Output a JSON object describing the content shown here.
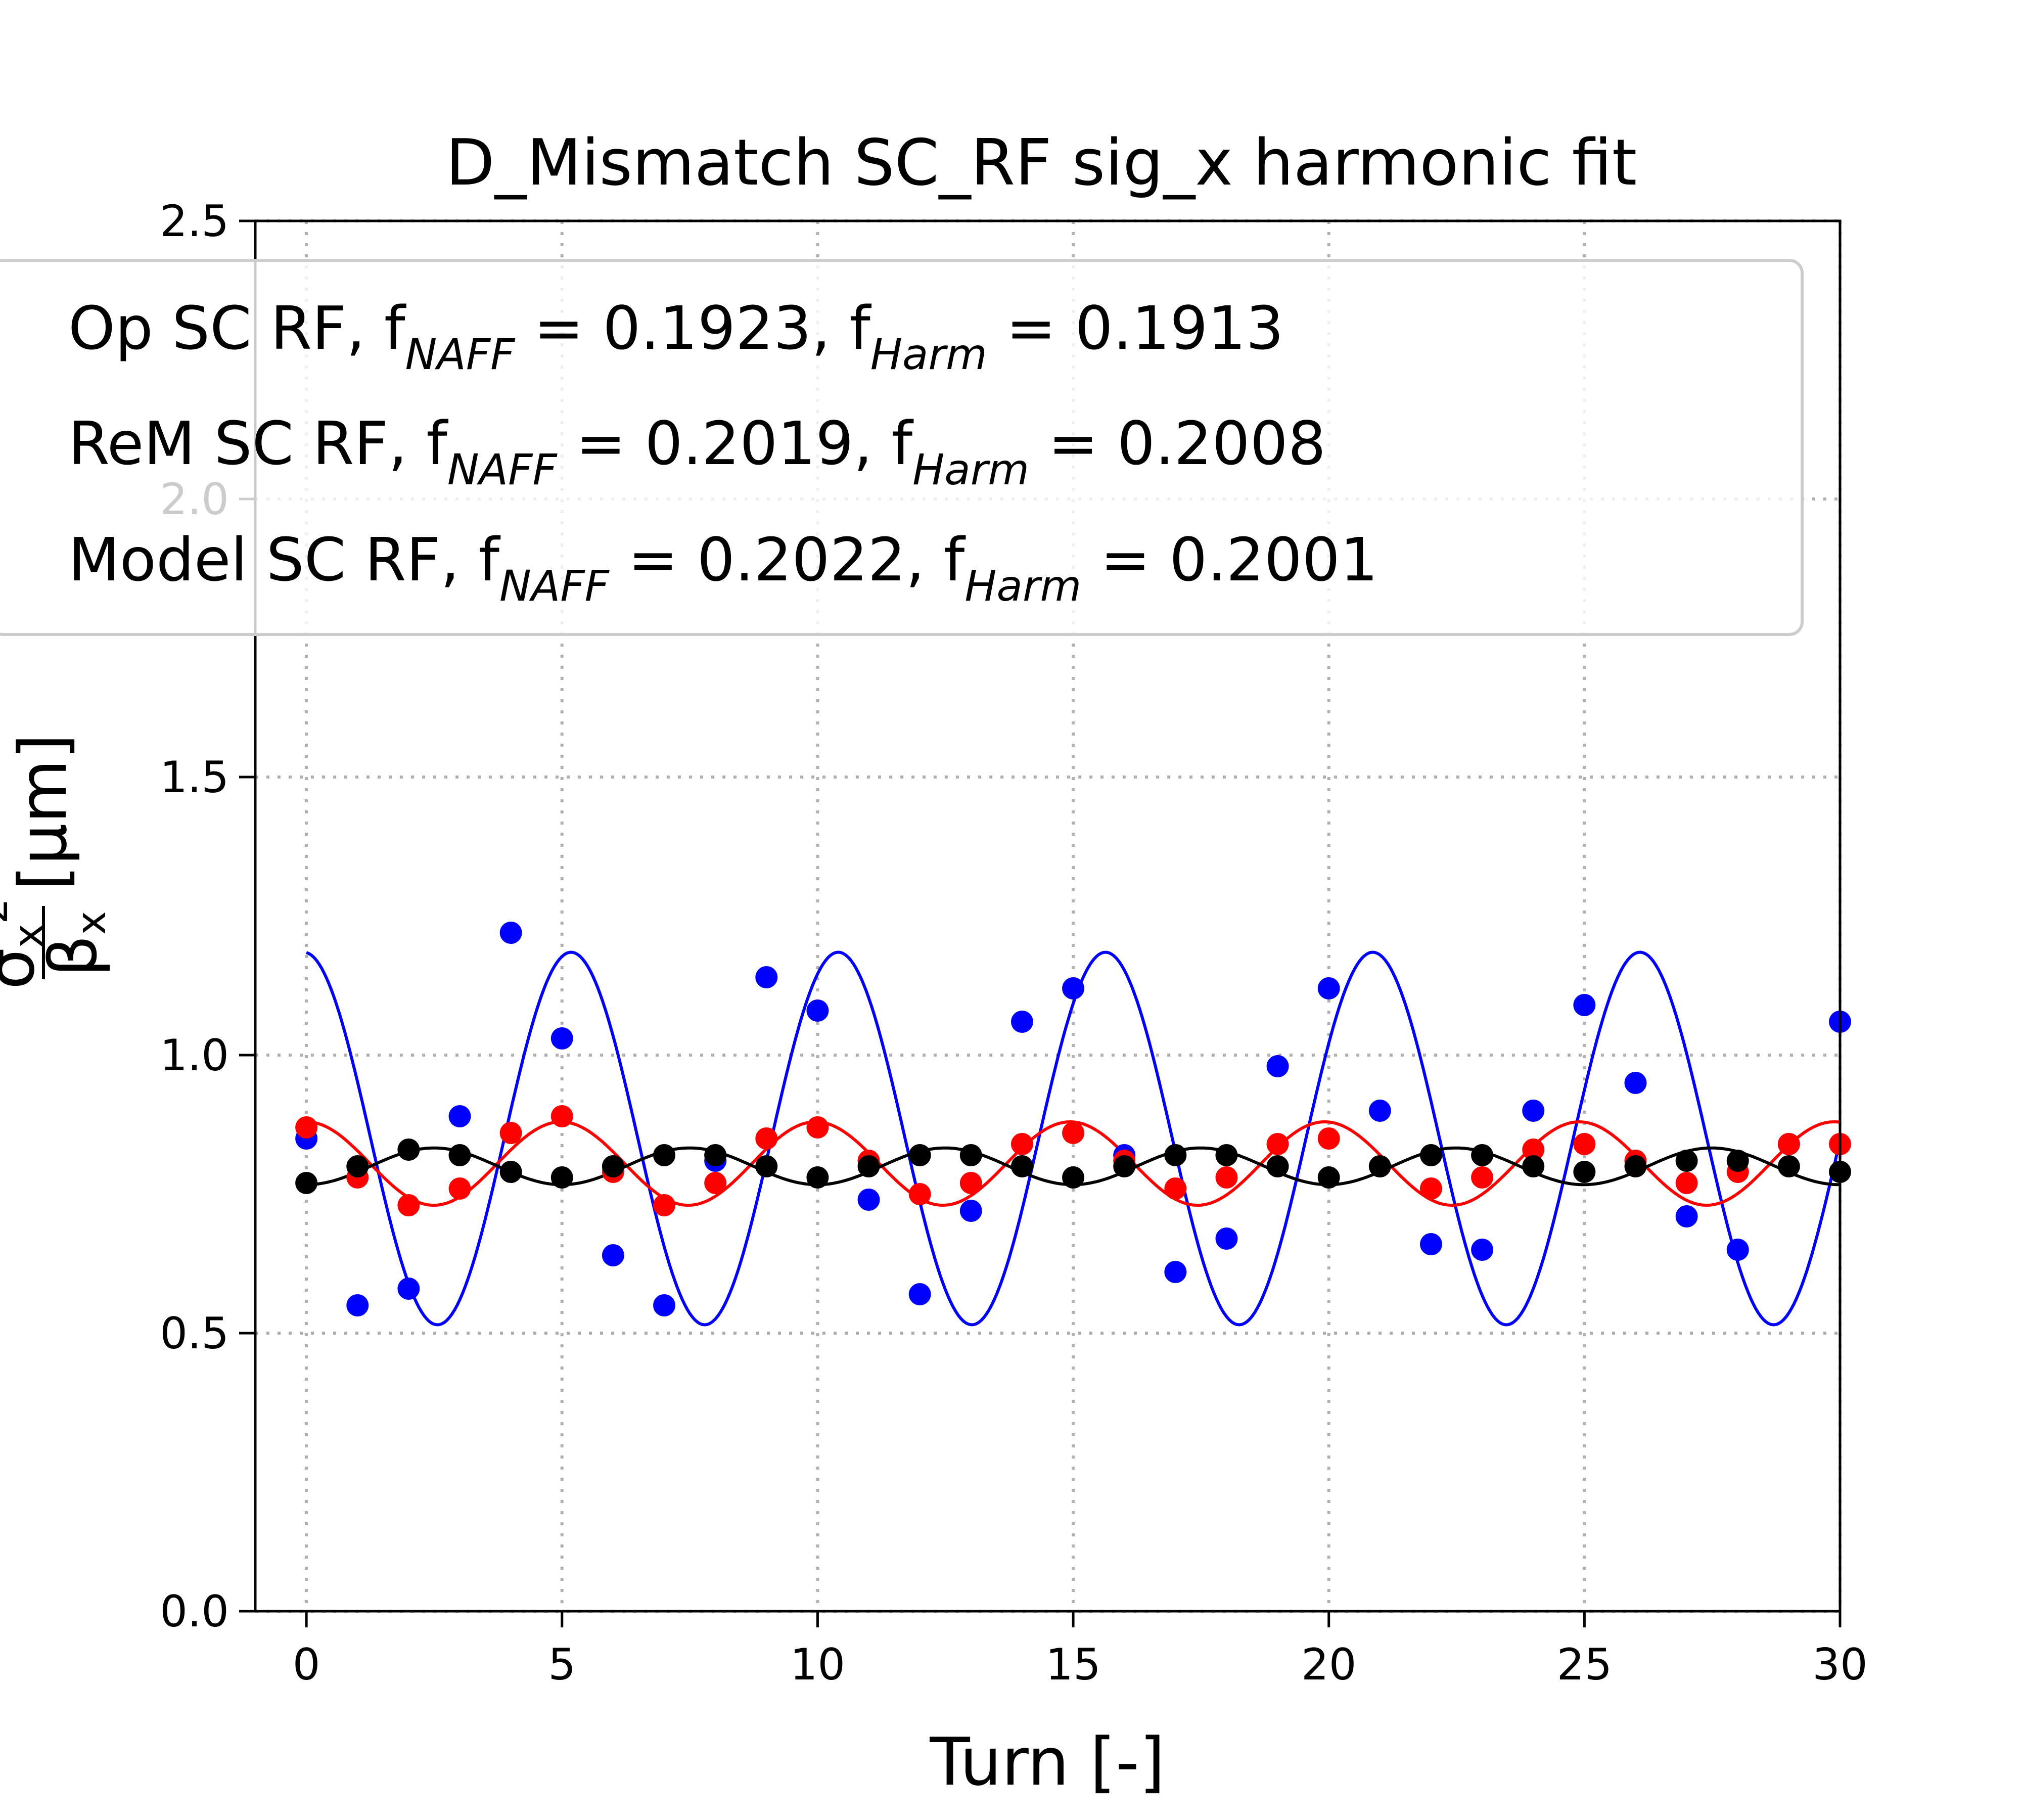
{
  "chart_data": {
    "type": "scatter",
    "title": "D_Mismatch SC_RF sig_x harmonic fit",
    "xlabel": "Turn [-]",
    "ylabel": {
      "prefix": "",
      "numerator": "σ",
      "numerator_sub": "x",
      "numerator_sup": "2",
      "denominator": "β",
      "denominator_sub": "x",
      "unit": "[μm]"
    },
    "xlim": [
      -1,
      30
    ],
    "ylim": [
      0,
      2.5
    ],
    "xticks": [
      0,
      5,
      10,
      15,
      20,
      25,
      30
    ],
    "xtick_labels": [
      "0",
      "5",
      "10",
      "15",
      "20",
      "25",
      "30"
    ],
    "yticks": [
      0,
      0.5,
      1.0,
      1.5,
      2.0,
      2.5
    ],
    "ytick_labels": [
      "0.0",
      "0.5",
      "1.0",
      "1.5",
      "2.0",
      "2.5"
    ],
    "grid": true,
    "legend_position": "top",
    "legend": [
      {
        "label": "Op SC RF, f",
        "sub1": "NAFF",
        "eq1": " = 0.1923, f",
        "sub2": "Harm",
        "eq2": " = 0.1913",
        "color": "#0000ff"
      },
      {
        "label": "ReM SC RF, f",
        "sub1": "NAFF",
        "eq1": " = 0.2019, f",
        "sub2": "Harm",
        "eq2": " = 0.2008",
        "color": "#ff0000"
      },
      {
        "label": "Model SC RF, f",
        "sub1": "NAFF",
        "eq1": " = 0.2022, f",
        "sub2": "Harm",
        "eq2": " = 0.2001",
        "color": "#000000"
      }
    ],
    "x": [
      0,
      1,
      2,
      3,
      4,
      5,
      6,
      7,
      8,
      9,
      10,
      11,
      12,
      13,
      14,
      15,
      16,
      17,
      18,
      19,
      20,
      21,
      22,
      23,
      24,
      25,
      26,
      27,
      28,
      29,
      30
    ],
    "series": [
      {
        "color": "#0000ff",
        "points": [
          0.85,
          0.55,
          0.58,
          0.89,
          1.22,
          1.03,
          0.64,
          0.55,
          0.81,
          1.14,
          1.08,
          0.74,
          0.57,
          0.72,
          1.06,
          1.12,
          0.82,
          0.61,
          0.67,
          0.98,
          1.12,
          0.9,
          0.66,
          0.65,
          0.9,
          1.09,
          0.95,
          0.71,
          0.65,
          0.84,
          1.06
        ],
        "fit": {
          "mean": 0.85,
          "amplitude": 0.335,
          "frequency": 0.1913,
          "phase": 0.06
        }
      },
      {
        "color": "#ff0000",
        "points": [
          0.87,
          0.78,
          0.73,
          0.76,
          0.86,
          0.89,
          0.79,
          0.73,
          0.77,
          0.85,
          0.87,
          0.81,
          0.75,
          0.77,
          0.84,
          0.86,
          0.81,
          0.76,
          0.78,
          0.84,
          0.85,
          0.8,
          0.76,
          0.78,
          0.83,
          0.84,
          0.81,
          0.77,
          0.79,
          0.84,
          0.84
        ],
        "fit": {
          "mean": 0.805,
          "amplitude": 0.075,
          "frequency": 0.2008,
          "phase": 0.0
        }
      },
      {
        "color": "#000000",
        "points": [
          0.77,
          0.8,
          0.83,
          0.82,
          0.79,
          0.78,
          0.8,
          0.82,
          0.82,
          0.8,
          0.78,
          0.8,
          0.82,
          0.82,
          0.8,
          0.78,
          0.8,
          0.82,
          0.82,
          0.8,
          0.78,
          0.8,
          0.82,
          0.82,
          0.8,
          0.79,
          0.8,
          0.81,
          0.81,
          0.8,
          0.79
        ],
        "fit": {
          "mean": 0.8,
          "amplitude": 0.033,
          "frequency": 0.2001,
          "phase": 3.14159
        }
      }
    ]
  }
}
